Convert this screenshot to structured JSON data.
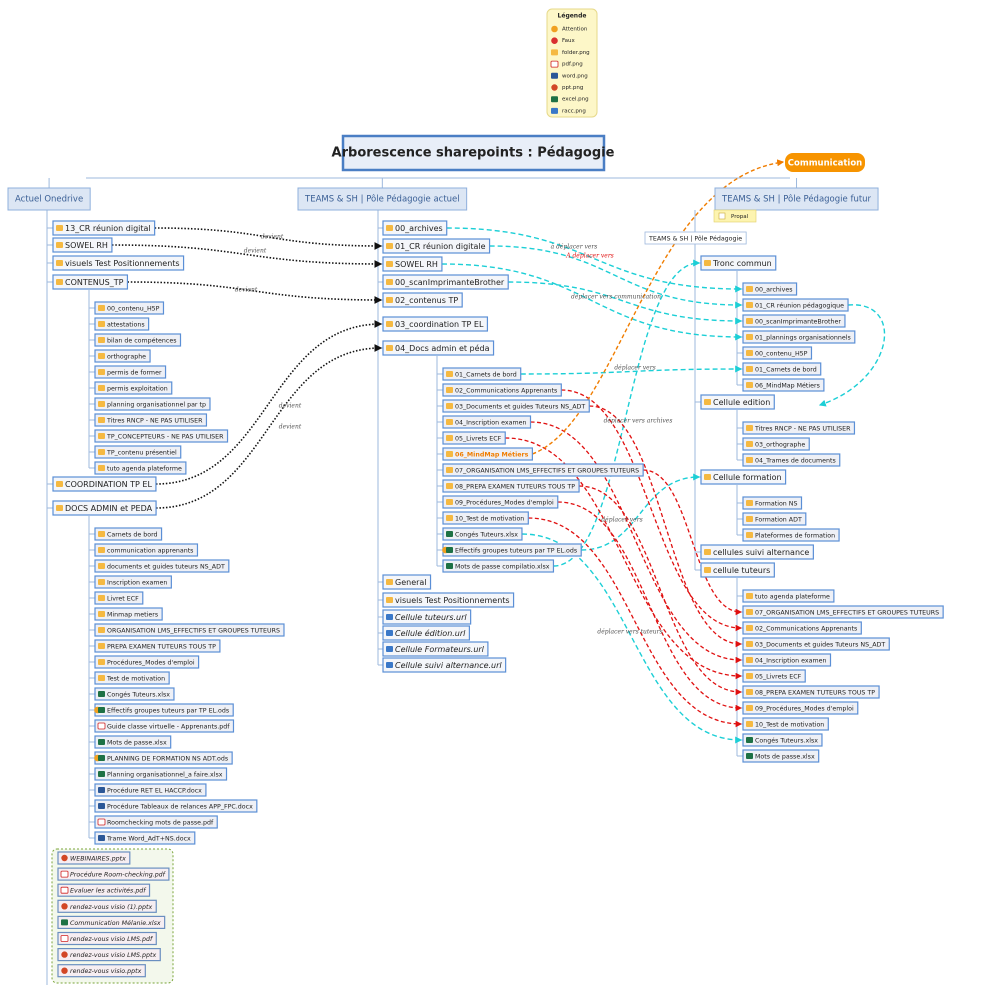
{
  "legend": {
    "title": "Légende",
    "items": [
      "Attention",
      "Faux",
      "folder.png",
      "pdf.png",
      "word.png",
      "ppt.png",
      "excel.png",
      "racc.png"
    ]
  },
  "title": "Arborescence sharepoints : Pédagogie",
  "communication": "Communication",
  "columns": [
    {
      "title": "Actuel Onedrive",
      "nodes": [
        {
          "label": "13_CR réunion digital"
        },
        {
          "label": "SOWEL RH"
        },
        {
          "label": "visuels Test Positionnements"
        },
        {
          "label": "CONTENUS_TP",
          "children": [
            {
              "label": "00_contenu_H5P"
            },
            {
              "label": "attestations"
            },
            {
              "label": "bilan de compétences"
            },
            {
              "label": "orthographe"
            },
            {
              "label": "permis de former"
            },
            {
              "label": "permis exploitation"
            },
            {
              "label": "planning organisationnel par tp"
            },
            {
              "label": "Titres RNCP - NE PAS UTILISER"
            },
            {
              "label": "TP_CONCEPTEURS - NE PAS UTILISER"
            },
            {
              "label": "TP_contenu présentiel"
            },
            {
              "label": "tuto agenda plateforme"
            }
          ]
        },
        {
          "label": "COORDINATION TP EL"
        },
        {
          "label": "DOCS ADMIN et PEDA",
          "children": [
            {
              "label": "Carnets de bord"
            },
            {
              "label": "communication apprenants"
            },
            {
              "label": "documents et guides tuteurs NS_ADT"
            },
            {
              "label": "Inscription examen"
            },
            {
              "label": "Livret ECF"
            },
            {
              "label": "Minmap metiers"
            },
            {
              "label": "ORGANISATION LMS_EFFECTIFS ET GROUPES TUTEURS"
            },
            {
              "label": "PREPA EXAMEN TUTEURS TOUS TP"
            },
            {
              "label": "Procédures_Modes d'emploi"
            },
            {
              "label": "Test de motivation"
            },
            {
              "label": "Congés Tuteurs.xlsx"
            },
            {
              "label": "Effectifs groupes tuteurs par TP EL.ods"
            },
            {
              "label": "Guide classe virtuelle - Apprenants.pdf"
            },
            {
              "label": "Mots de passe.xlsx"
            },
            {
              "label": "PLANNING DE FORMATION NS ADT.ods"
            },
            {
              "label": "Planning organisationnel_a faire.xlsx"
            },
            {
              "label": "Procédure RET EL HACCP.docx"
            },
            {
              "label": "Procédure Tableaux de relances APP_FPC.docx"
            },
            {
              "label": "Roomchecking  mots de passe.pdf"
            },
            {
              "label": "Trame Word_AdT+NS.docx"
            }
          ]
        }
      ],
      "files": [
        {
          "label": "WEBINAIRES.pptx"
        },
        {
          "label": "Procédure Room-checking.pdf"
        },
        {
          "label": "Evaluer les activités.pdf"
        },
        {
          "label": "rendez-vous visio (1).pptx"
        },
        {
          "label": "Communication Mélanie.xlsx"
        },
        {
          "label": "rendez-vous visio LMS.pdf"
        },
        {
          "label": "rendez-vous visio LMS.pptx"
        },
        {
          "label": "rendez-vous visio.pptx"
        }
      ]
    },
    {
      "title": "TEAMS & SH | Pôle Pédagogie actuel",
      "nodes": [
        {
          "label": "00_archives"
        },
        {
          "label": "01_CR réunion digitale"
        },
        {
          "label": "SOWEL RH"
        },
        {
          "label": "00_scanImprimanteBrother"
        },
        {
          "label": "02_contenus TP"
        },
        {
          "label": "03_coordination TP EL"
        },
        {
          "label": "04_Docs admin et péda",
          "children": [
            {
              "label": "01_Carnets de bord"
            },
            {
              "label": "02_Communications Apprenants"
            },
            {
              "label": "03_Documents et guides Tuteurs NS_ADT"
            },
            {
              "label": "04_Inscription examen"
            },
            {
              "label": "05_Livrets ECF"
            },
            {
              "label": "06_MindMap Métiers",
              "color": "#f07d00"
            },
            {
              "label": "07_ORGANISATION LMS_EFFECTIFS ET GROUPES TUTEURS"
            },
            {
              "label": "08_PREPA EXAMEN TUTEURS TOUS TP"
            },
            {
              "label": "09_Procédures_Modes d'emploi"
            },
            {
              "label": "10_Test de motivation"
            },
            {
              "label": "Congés Tuteurs.xlsx"
            },
            {
              "label": "Effectifs groupes tuteurs par TP EL.ods"
            },
            {
              "label": "Mots de passe compilatio.xlsx"
            }
          ]
        },
        {
          "label": "General"
        },
        {
          "label": "visuels Test Positionnements"
        },
        {
          "label": "Cellule tuteurs.url"
        },
        {
          "label": "Cellule édition.url"
        },
        {
          "label": "Cellule Formateurs.url"
        },
        {
          "label": "Cellule suivi alternance.url"
        }
      ]
    },
    {
      "title": "TEAMS & SH | Pôle Pédagogie futur",
      "note": "Propal",
      "root": "TEAMS & SH | Pôle Pédagogie",
      "nodes": [
        {
          "label": "Tronc commun",
          "children": [
            {
              "label": "00_archives"
            },
            {
              "label": "01_CR réunion pédagogique"
            },
            {
              "label": "00_scanImprimanteBrother"
            },
            {
              "label": "01_plannings organisationnels"
            },
            {
              "label": "00_contenu_H5P"
            },
            {
              "label": "01_Carnets de bord"
            },
            {
              "label": "06_MindMap Métiers"
            }
          ]
        },
        {
          "label": "Cellule edition",
          "children": [
            {
              "label": "Titres RNCP - NE PAS UTILISER"
            },
            {
              "label": "03_orthographe"
            },
            {
              "label": "04_Trames de documents"
            }
          ]
        },
        {
          "label": "Cellule formation",
          "children": [
            {
              "label": "Formation NS"
            },
            {
              "label": "Formation ADT"
            },
            {
              "label": "Plateformes de formation"
            }
          ]
        },
        {
          "label": "cellules suivi alternance"
        },
        {
          "label": "cellule tuteurs",
          "children": [
            {
              "label": "tuto agenda plateforme"
            },
            {
              "label": "07_ORGANISATION LMS_EFFECTIFS ET GROUPES TUTEURS"
            },
            {
              "label": "02_Communications Apprenants"
            },
            {
              "label": "03_Documents et guides Tuteurs NS_ADT"
            },
            {
              "label": "04_Inscription examen"
            },
            {
              "label": "05_Livrets ECF"
            },
            {
              "label": "08_PREPA EXAMEN TUTEURS TOUS TP"
            },
            {
              "label": "09_Procédures_Modes d'emploi"
            },
            {
              "label": "10_Test de motivation"
            },
            {
              "label": "Congés Tuteurs.xlsx"
            },
            {
              "label": "Mots de passe.xlsx"
            }
          ]
        }
      ]
    }
  ],
  "connector_labels": [
    "devient",
    "devient",
    "devient",
    "devient",
    "devient",
    "à déplacer vers",
    "A déplacer vers",
    "déplacer vers communication",
    "déplacer vers",
    "déplacer vers archives",
    "déplacer vers",
    "déplacer vers tuteurs"
  ]
}
